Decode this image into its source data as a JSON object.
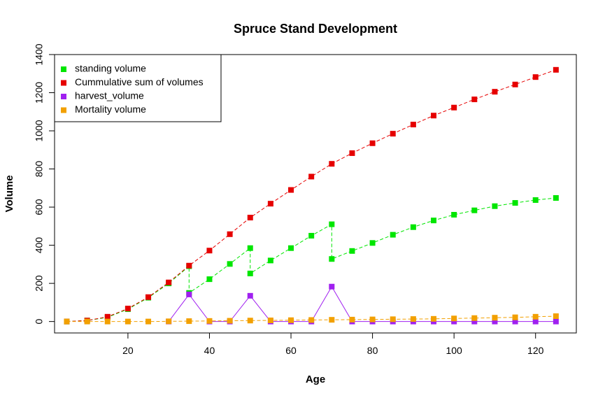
{
  "chart_data": {
    "type": "line",
    "title": "Spruce Stand Development",
    "xlabel": "Age",
    "ylabel": "Volume",
    "xlim": [
      2,
      130
    ],
    "ylim": [
      -60,
      1400
    ],
    "x_ticks": [
      20,
      40,
      60,
      80,
      100,
      120
    ],
    "y_ticks": [
      0,
      200,
      400,
      600,
      800,
      1000,
      1200,
      1400
    ],
    "grid": false,
    "legend_position": "top-left",
    "series": [
      {
        "name": "standing volume",
        "color": "#00e600",
        "line_style": "dashed",
        "points": [
          [
            5,
            0
          ],
          [
            10,
            5
          ],
          [
            15,
            22
          ],
          [
            20,
            65
          ],
          [
            25,
            125
          ],
          [
            30,
            200
          ],
          [
            35,
            290
          ],
          [
            35,
            150
          ],
          [
            40,
            222
          ],
          [
            45,
            302
          ],
          [
            50,
            385
          ],
          [
            50,
            252
          ],
          [
            55,
            320
          ],
          [
            60,
            385
          ],
          [
            65,
            450
          ],
          [
            70,
            510
          ],
          [
            70,
            328
          ],
          [
            75,
            370
          ],
          [
            80,
            412
          ],
          [
            85,
            455
          ],
          [
            90,
            495
          ],
          [
            95,
            530
          ],
          [
            100,
            560
          ],
          [
            105,
            583
          ],
          [
            110,
            605
          ],
          [
            115,
            622
          ],
          [
            120,
            637
          ],
          [
            125,
            648
          ]
        ]
      },
      {
        "name": "Cummulative sum of volumes",
        "color": "#e60000",
        "line_style": "dashed",
        "points": [
          [
            5,
            0
          ],
          [
            10,
            5
          ],
          [
            15,
            25
          ],
          [
            20,
            68
          ],
          [
            25,
            128
          ],
          [
            30,
            205
          ],
          [
            35,
            293
          ],
          [
            40,
            372
          ],
          [
            45,
            458
          ],
          [
            50,
            545
          ],
          [
            55,
            618
          ],
          [
            60,
            690
          ],
          [
            65,
            760
          ],
          [
            70,
            827
          ],
          [
            75,
            883
          ],
          [
            80,
            935
          ],
          [
            85,
            985
          ],
          [
            90,
            1033
          ],
          [
            95,
            1080
          ],
          [
            100,
            1122
          ],
          [
            105,
            1165
          ],
          [
            110,
            1205
          ],
          [
            115,
            1243
          ],
          [
            120,
            1282
          ],
          [
            125,
            1320
          ]
        ]
      },
      {
        "name": "harvest_volume",
        "color": "#a020f0",
        "line_style": "solid",
        "points": [
          [
            30,
            0
          ],
          [
            35,
            142
          ],
          [
            40,
            0
          ],
          [
            45,
            0
          ],
          [
            50,
            135
          ],
          [
            55,
            0
          ],
          [
            60,
            0
          ],
          [
            65,
            0
          ],
          [
            70,
            183
          ],
          [
            75,
            0
          ],
          [
            80,
            0
          ],
          [
            85,
            0
          ],
          [
            90,
            0
          ],
          [
            95,
            0
          ],
          [
            100,
            0
          ],
          [
            105,
            0
          ],
          [
            110,
            0
          ],
          [
            115,
            0
          ],
          [
            120,
            0
          ],
          [
            125,
            0
          ]
        ]
      },
      {
        "name": "Mortality volume",
        "color": "#f2a000",
        "line_style": "dashed",
        "points": [
          [
            5,
            0
          ],
          [
            10,
            0
          ],
          [
            15,
            0
          ],
          [
            20,
            0
          ],
          [
            25,
            0
          ],
          [
            30,
            1
          ],
          [
            35,
            2
          ],
          [
            40,
            3
          ],
          [
            45,
            4
          ],
          [
            50,
            5
          ],
          [
            55,
            6
          ],
          [
            60,
            7
          ],
          [
            65,
            8
          ],
          [
            70,
            9
          ],
          [
            75,
            10
          ],
          [
            80,
            11
          ],
          [
            85,
            12
          ],
          [
            90,
            13
          ],
          [
            95,
            14
          ],
          [
            100,
            16
          ],
          [
            105,
            18
          ],
          [
            110,
            20
          ],
          [
            115,
            22
          ],
          [
            120,
            25
          ],
          [
            125,
            28
          ]
        ]
      }
    ]
  }
}
